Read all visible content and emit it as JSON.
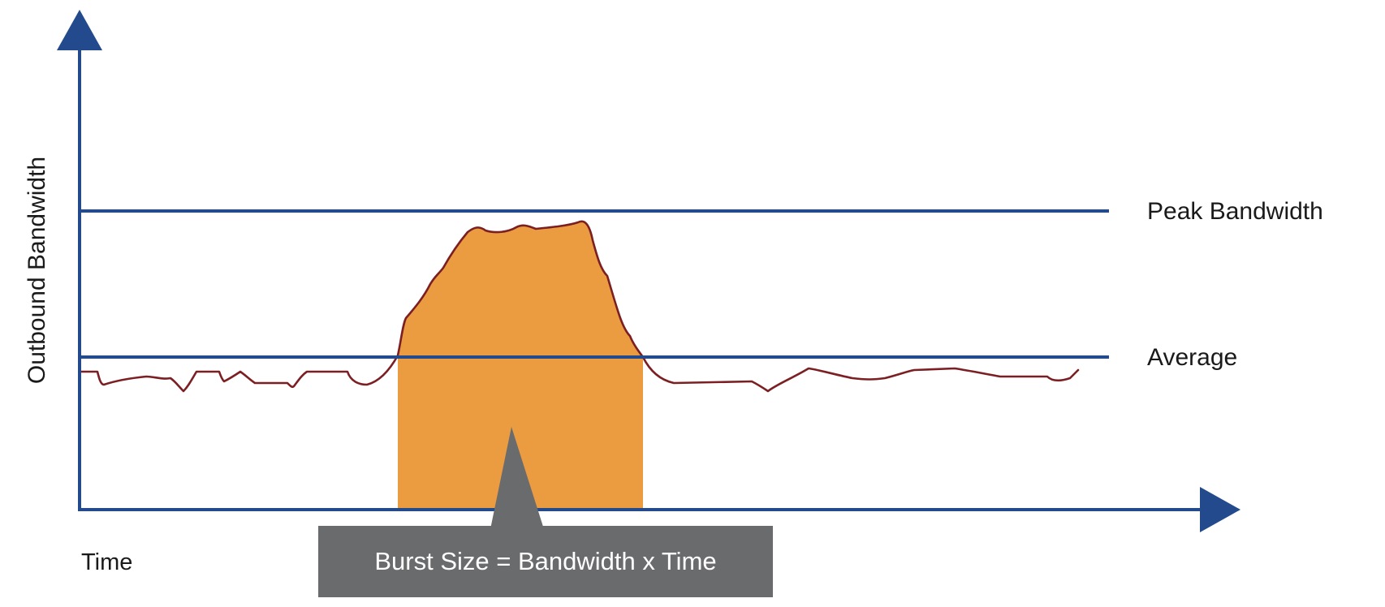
{
  "y_axis_label": "Outbound Bandwidth",
  "x_axis_label": "Time",
  "peak_label": "Peak Bandwidth",
  "average_label": "Average",
  "callout_text": "Burst Size = Bandwidth x Time",
  "colors": {
    "axis": "#234a8c",
    "reference_line": "#234a8c",
    "traffic_line": "#7c1f22",
    "burst_fill": "#eb9c41",
    "callout_bg": "#6a6b6d",
    "callout_text": "#ffffff",
    "label_text": "#1a1a1a"
  }
}
